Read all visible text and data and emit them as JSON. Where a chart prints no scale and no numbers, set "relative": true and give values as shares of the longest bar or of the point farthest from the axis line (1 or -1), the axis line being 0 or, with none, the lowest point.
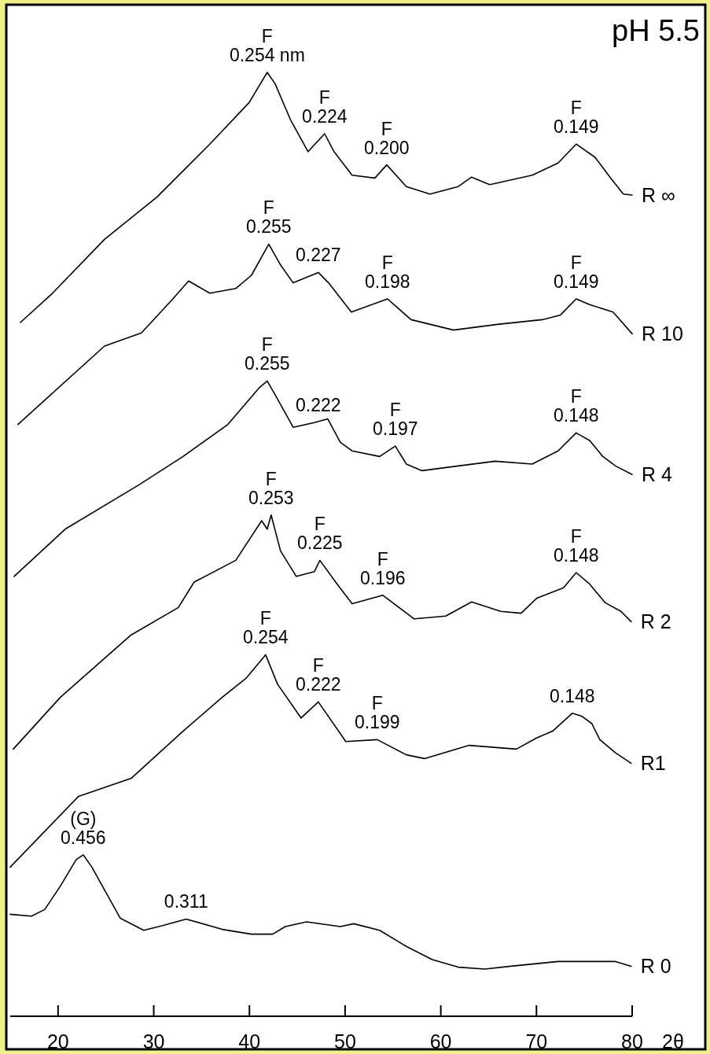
{
  "chart_data": {
    "type": "line",
    "title": "pH 5.5",
    "xlabel": "2θ",
    "relative": true,
    "xlim": [
      15,
      80
    ],
    "xticks": [
      20,
      30,
      40,
      50,
      60,
      70,
      80
    ],
    "series": [
      {
        "name": "R ∞",
        "color": "#000000",
        "x": [
          16.06,
          19.42,
          24.85,
          30.35,
          35.86,
          39.97,
          41.86,
          42.68,
          44.33,
          46.13,
          47.86,
          48.84,
          50.73,
          53.11,
          54.35,
          56.4,
          58.87,
          61.82,
          63.22,
          65.11,
          69.55,
          72.26,
          74.15,
          76.12,
          77.76,
          79.08,
          80
        ],
        "values": [
          0.735,
          0.766,
          0.823,
          0.868,
          0.924,
          0.968,
          1,
          0.988,
          0.949,
          0.916,
          0.935,
          0.916,
          0.891,
          0.888,
          0.902,
          0.879,
          0.871,
          0.879,
          0.889,
          0.881,
          0.891,
          0.904,
          0.924,
          0.91,
          0.888,
          0.871,
          0.87
        ]
      },
      {
        "name": "R 10",
        "color": "#000000",
        "x": [
          15.81,
          24.85,
          28.71,
          32.0,
          33.64,
          35.86,
          38.57,
          40.21,
          42.02,
          43.25,
          44.57,
          47.2,
          48.27,
          50.65,
          54.43,
          56.89,
          61.33,
          65.93,
          70.62,
          72.51,
          74.15,
          75.55,
          78.01,
          80
        ],
        "values": [
          0.627,
          0.71,
          0.724,
          0.76,
          0.779,
          0.766,
          0.771,
          0.785,
          0.818,
          0.796,
          0.777,
          0.788,
          0.777,
          0.746,
          0.76,
          0.738,
          0.727,
          0.733,
          0.738,
          0.743,
          0.76,
          0.754,
          0.746,
          0.723
        ]
      },
      {
        "name": "R 4",
        "color": "#000000",
        "x": [
          15.4,
          20.74,
          28.46,
          33.06,
          37.75,
          41.04,
          41.86,
          42.93,
          44.57,
          46.79,
          48.18,
          49.5,
          50.73,
          53.61,
          55.25,
          56.4,
          58.04,
          61.82,
          65.69,
          69.55,
          72.26,
          74.15,
          75.55,
          76.94,
          78.26,
          80
        ],
        "values": [
          0.466,
          0.516,
          0.563,
          0.593,
          0.627,
          0.666,
          0.673,
          0.654,
          0.624,
          0.629,
          0.633,
          0.608,
          0.599,
          0.593,
          0.604,
          0.585,
          0.578,
          0.583,
          0.588,
          0.585,
          0.599,
          0.618,
          0.61,
          0.593,
          0.583,
          0.574
        ]
      },
      {
        "name": "R 2",
        "color": "#000000",
        "x": [
          15.32,
          20.25,
          27.64,
          32.57,
          34.22,
          38.57,
          41.28,
          41.86,
          42.27,
          43.25,
          44.9,
          46.79,
          47.36,
          49.01,
          50.73,
          53.94,
          57.22,
          60.51,
          63.22,
          66.26,
          68.4,
          70.04,
          72.83,
          74.15,
          75.55,
          77.19,
          78.83,
          79.9
        ],
        "values": [
          0.283,
          0.338,
          0.404,
          0.433,
          0.46,
          0.483,
          0.525,
          0.516,
          0.531,
          0.493,
          0.466,
          0.471,
          0.483,
          0.46,
          0.437,
          0.446,
          0.421,
          0.424,
          0.439,
          0.429,
          0.427,
          0.443,
          0.454,
          0.47,
          0.458,
          0.438,
          0.429,
          0.418
        ]
      },
      {
        "name": "R1",
        "color": "#000000",
        "x": [
          15,
          22.14,
          27.64,
          33.06,
          37.17,
          39.64,
          41.69,
          42.93,
          45.39,
          47.2,
          50.07,
          53.36,
          56.4,
          58.29,
          62.97,
          67.9,
          70.04,
          71.68,
          73.74,
          74.72,
          75.79,
          76.62,
          78.26,
          79.9
        ],
        "values": [
          0.158,
          0.233,
          0.252,
          0.302,
          0.338,
          0.358,
          0.383,
          0.352,
          0.316,
          0.333,
          0.291,
          0.293,
          0.277,
          0.273,
          0.287,
          0.283,
          0.295,
          0.302,
          0.321,
          0.318,
          0.31,
          0.293,
          0.279,
          0.268
        ]
      },
      {
        "name": "R 0",
        "color": "#000000",
        "x": [
          15,
          17.21,
          18.6,
          20.25,
          21.89,
          22.63,
          23.53,
          26.49,
          28.96,
          30.93,
          33.39,
          37.17,
          40.21,
          42.43,
          43.75,
          45.97,
          49.5,
          50.9,
          53.61,
          56.4,
          59.11,
          61.82,
          64.62,
          67.33,
          72.26,
          74.15,
          78.26,
          79.9
        ],
        "values": [
          0.108,
          0.106,
          0.113,
          0.138,
          0.166,
          0.171,
          0.158,
          0.104,
          0.091,
          0.096,
          0.103,
          0.092,
          0.087,
          0.087,
          0.095,
          0.1,
          0.095,
          0.098,
          0.091,
          0.074,
          0.06,
          0.052,
          0.05,
          0.053,
          0.058,
          0.058,
          0.058,
          0.053
        ]
      }
    ],
    "annotations": [
      {
        "text": "F\n0.254 nm",
        "x": 41.86,
        "y": 1
      },
      {
        "text": "F\n0.224",
        "x": 47.86,
        "y": 0.935
      },
      {
        "text": "F\n0.200",
        "x": 54.35,
        "y": 0.902
      },
      {
        "text": "F\n0.149",
        "x": 74.15,
        "y": 0.924
      },
      {
        "text": "F\n0.255",
        "x": 42.02,
        "y": 0.818
      },
      {
        "text": "0.227",
        "x": 47.2,
        "y": 0.788
      },
      {
        "text": "F\n0.198",
        "x": 54.43,
        "y": 0.76
      },
      {
        "text": "F\n0.149",
        "x": 74.15,
        "y": 0.76
      },
      {
        "text": "F\n0.255",
        "x": 41.86,
        "y": 0.673
      },
      {
        "text": "0.222",
        "x": 47.2,
        "y": 0.629
      },
      {
        "text": "F\n0.197",
        "x": 55.25,
        "y": 0.604
      },
      {
        "text": "F\n0.148",
        "x": 74.15,
        "y": 0.618
      },
      {
        "text": "F\n0.253",
        "x": 42.27,
        "y": 0.531
      },
      {
        "text": "F\n0.225",
        "x": 47.36,
        "y": 0.483
      },
      {
        "text": "F\n0.196",
        "x": 53.94,
        "y": 0.446
      },
      {
        "text": "F\n0.148",
        "x": 74.15,
        "y": 0.47
      },
      {
        "text": "F\n0.254",
        "x": 41.69,
        "y": 0.383
      },
      {
        "text": "F\n0.222",
        "x": 47.2,
        "y": 0.333
      },
      {
        "text": "F\n0.199",
        "x": 53.36,
        "y": 0.293
      },
      {
        "text": "0.148",
        "x": 73.74,
        "y": 0.321
      },
      {
        "text": "(G)\n0.456",
        "x": 22.63,
        "y": 0.171
      },
      {
        "text": "0.311",
        "x": 33.39,
        "y": 0.103
      }
    ]
  }
}
